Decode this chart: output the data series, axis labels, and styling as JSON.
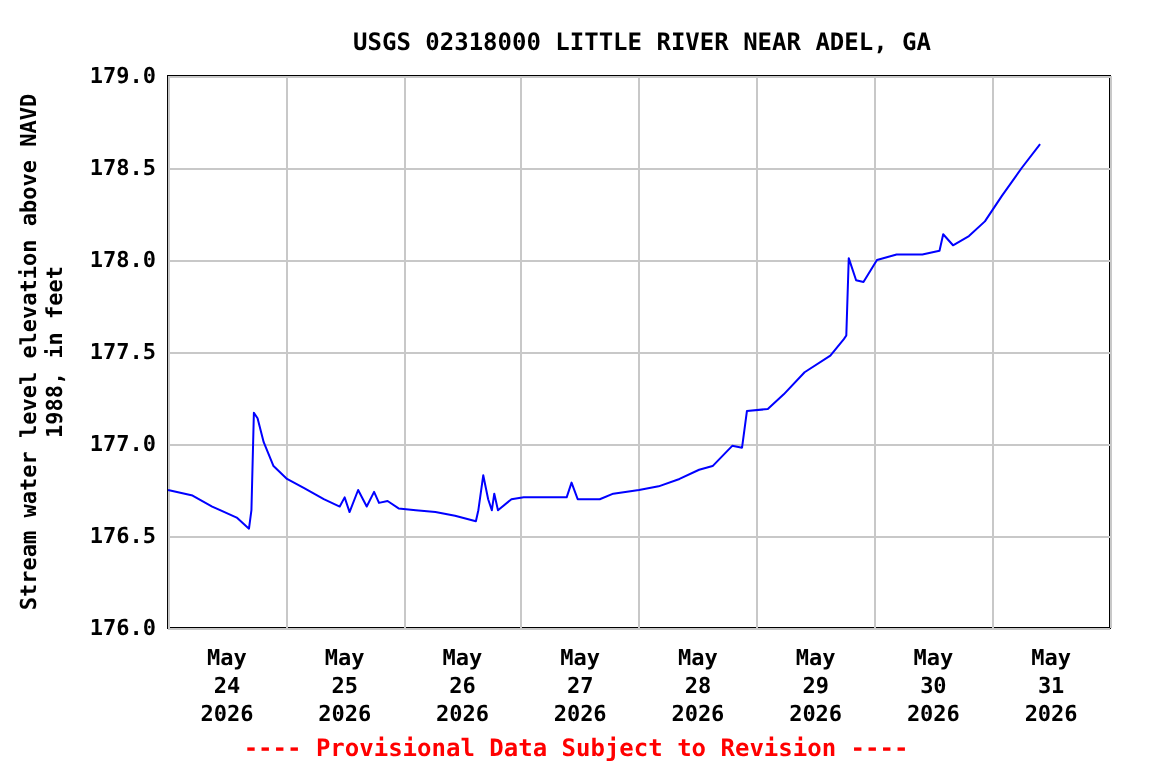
{
  "chart_data": {
    "type": "line",
    "title": "USGS 02318000 LITTLE RIVER NEAR ADEL, GA",
    "ylabel": "Stream water level elevation above NAVD\n1988, in feet",
    "annotations": [
      "---- Provisional Data Subject to Revision ----"
    ],
    "x": [
      "2026-05-24T00:00",
      "2026-05-24T05:00",
      "2026-05-24T09:00",
      "2026-05-24T14:00",
      "2026-05-24T16:30",
      "2026-05-24T17:00",
      "2026-05-24T17:30",
      "2026-05-24T18:15",
      "2026-05-24T19:30",
      "2026-05-24T21:30",
      "2026-05-25T00:15",
      "2026-05-25T03:45",
      "2026-05-25T07:45",
      "2026-05-25T11:00",
      "2026-05-25T12:00",
      "2026-05-25T13:00",
      "2026-05-25T14:45",
      "2026-05-25T16:30",
      "2026-05-25T18:00",
      "2026-05-25T19:00",
      "2026-05-25T20:45",
      "2026-05-25T23:00",
      "2026-05-26T02:30",
      "2026-05-26T06:30",
      "2026-05-26T10:30",
      "2026-05-26T14:45",
      "2026-05-26T15:15",
      "2026-05-26T16:15",
      "2026-05-26T17:15",
      "2026-05-26T18:00",
      "2026-05-26T18:30",
      "2026-05-26T19:15",
      "2026-05-26T22:00",
      "2026-05-27T00:30",
      "2026-05-27T05:15",
      "2026-05-27T09:15",
      "2026-05-27T10:15",
      "2026-05-27T11:30",
      "2026-05-27T16:00",
      "2026-05-27T18:45",
      "2026-05-28T00:00",
      "2026-05-28T04:00",
      "2026-05-28T08:15",
      "2026-05-28T12:15",
      "2026-05-28T15:00",
      "2026-05-28T19:00",
      "2026-05-28T21:00",
      "2026-05-28T22:00",
      "2026-05-29T02:15",
      "2026-05-29T05:30",
      "2026-05-29T09:45",
      "2026-05-29T15:00",
      "2026-05-29T17:45",
      "2026-05-29T18:15",
      "2026-05-29T18:45",
      "2026-05-29T20:15",
      "2026-05-29T21:45",
      "2026-05-30T00:30",
      "2026-05-30T04:30",
      "2026-05-30T09:45",
      "2026-05-30T13:15",
      "2026-05-30T14:00",
      "2026-05-30T16:00",
      "2026-05-30T19:15",
      "2026-05-30T22:30",
      "2026-05-31T02:00",
      "2026-05-31T06:00",
      "2026-05-31T09:45"
    ],
    "series": [
      {
        "color": "#0000ff",
        "values": [
          176.75,
          176.72,
          176.66,
          176.6,
          176.54,
          176.64,
          177.17,
          177.14,
          177.01,
          176.88,
          176.81,
          176.76,
          176.7,
          176.66,
          176.71,
          176.63,
          176.75,
          176.66,
          176.74,
          176.68,
          176.69,
          176.65,
          176.64,
          176.63,
          176.61,
          176.58,
          176.64,
          176.83,
          176.7,
          176.64,
          176.73,
          176.64,
          176.7,
          176.71,
          176.71,
          176.71,
          176.79,
          176.7,
          176.7,
          176.73,
          176.75,
          176.77,
          176.81,
          176.86,
          176.88,
          176.99,
          176.98,
          177.18,
          177.19,
          177.27,
          177.39,
          177.48,
          177.57,
          177.59,
          178.01,
          177.89,
          177.88,
          178.0,
          178.03,
          178.03,
          178.05,
          178.14,
          178.08,
          178.13,
          178.21,
          178.35,
          178.5,
          178.63
        ]
      }
    ],
    "xlim": [
      "2026-05-24T00:00",
      "2026-06-01T00:00"
    ],
    "xticks": [
      {
        "value": "2026-05-24T00:00",
        "label": null
      },
      {
        "value": "2026-05-24T12:00",
        "label": "May\n24\n2026"
      },
      {
        "value": "2026-05-25T00:00",
        "label": null
      },
      {
        "value": "2026-05-25T12:00",
        "label": "May\n25\n2026"
      },
      {
        "value": "2026-05-26T00:00",
        "label": null
      },
      {
        "value": "2026-05-26T12:00",
        "label": "May\n26\n2026"
      },
      {
        "value": "2026-05-27T00:00",
        "label": null
      },
      {
        "value": "2026-05-27T12:00",
        "label": "May\n27\n2026"
      },
      {
        "value": "2026-05-28T00:00",
        "label": null
      },
      {
        "value": "2026-05-28T12:00",
        "label": "May\n28\n2026"
      },
      {
        "value": "2026-05-29T00:00",
        "label": null
      },
      {
        "value": "2026-05-29T12:00",
        "label": "May\n29\n2026"
      },
      {
        "value": "2026-05-30T00:00",
        "label": null
      },
      {
        "value": "2026-05-30T12:00",
        "label": "May\n30\n2026"
      },
      {
        "value": "2026-05-31T00:00",
        "label": null
      },
      {
        "value": "2026-05-31T12:00",
        "label": "May\n31\n2026"
      },
      {
        "value": "2026-06-01T00:00",
        "label": null
      }
    ],
    "ylim": [
      176,
      179
    ],
    "yticks": [
      {
        "value": 176,
        "label": "176.0"
      },
      {
        "value": 176.5,
        "label": "176.5"
      },
      {
        "value": 177,
        "label": "177.0"
      },
      {
        "value": 177.5,
        "label": "177.5"
      },
      {
        "value": 178,
        "label": "178.0"
      },
      {
        "value": 178.5,
        "label": "178.5"
      },
      {
        "value": 179,
        "label": "179.0"
      }
    ],
    "grid": true,
    "line_style": "solid",
    "marker": "none"
  }
}
